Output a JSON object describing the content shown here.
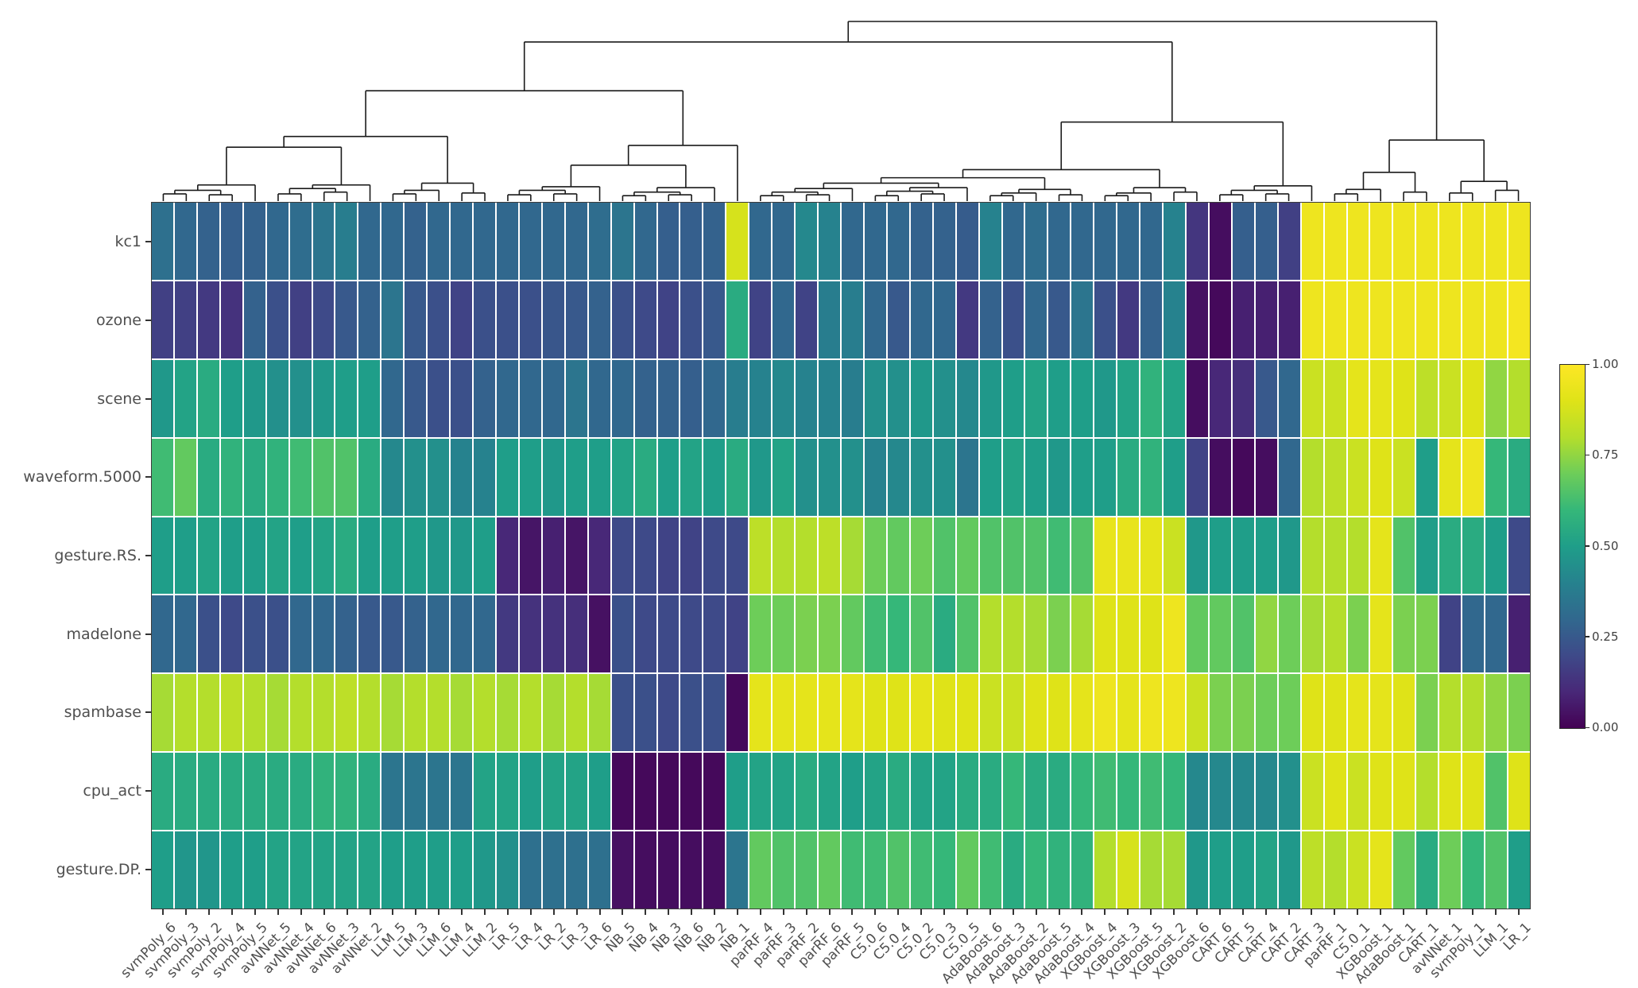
{
  "figure": {
    "kind": "cluster-heatmap",
    "background": "#ffffff"
  },
  "colors": {
    "label_text": "#4f4f4f",
    "axis": "#333333",
    "dendrogram_line": "#1a1a1a",
    "cell_gap": "#ffffff",
    "colorbar_border": "#2b2b2b"
  },
  "chart_data": {
    "type": "heatmap",
    "title": "",
    "xlabel": "",
    "ylabel": "",
    "grid": false,
    "legend_position": "right",
    "value_range": [
      0,
      1
    ],
    "colormap": "viridis",
    "colormap_stops": [
      [
        68,
        1,
        84
      ],
      [
        72,
        40,
        120
      ],
      [
        62,
        74,
        137
      ],
      [
        49,
        104,
        142
      ],
      [
        38,
        130,
        142
      ],
      [
        31,
        158,
        137
      ],
      [
        53,
        183,
        121
      ],
      [
        109,
        205,
        89
      ],
      [
        180,
        222,
        44
      ],
      [
        223,
        227,
        24
      ],
      [
        253,
        231,
        37
      ]
    ],
    "rows": [
      "kc1",
      "ozone",
      "scene",
      "waveform.5000",
      "gesture.RS.",
      "madelone",
      "spambase",
      "cpu_act",
      "gesture.DP."
    ],
    "columns": [
      "svmPoly_6",
      "svmPoly_3",
      "svmPoly_2",
      "svmPoly_4",
      "svmPoly_5",
      "avNNet_5",
      "avNNet_4",
      "avNNet_6",
      "avNNet_3",
      "avNNet_2",
      "LLM_5",
      "LLM_3",
      "LLM_6",
      "LLM_4",
      "LLM_2",
      "LR_5",
      "LR_4",
      "LR_2",
      "LR_3",
      "LR_6",
      "NB_5",
      "NB_4",
      "NB_3",
      "NB_6",
      "NB_2",
      "NB_1",
      "parRF_4",
      "parRF_3",
      "parRF_2",
      "parRF_6",
      "parRF_5",
      "C5.0_6",
      "C5.0_4",
      "C5.0_2",
      "C5.0_3",
      "C5.0_5",
      "AdaBoost_6",
      "AdaBoost_3",
      "AdaBoost_2",
      "AdaBoost_5",
      "AdaBoost_4",
      "XGBoost_4",
      "XGBoost_3",
      "XGBoost_5",
      "XGBoost_2",
      "XGBoost_6",
      "CART_6",
      "CART_5",
      "CART_4",
      "CART_2",
      "CART_3",
      "parRF_1",
      "C5.0_1",
      "XGBoost_1",
      "AdaBoost_1",
      "CART_1",
      "avNNet_1",
      "svmPoly_1",
      "LLM_1",
      "LR_1"
    ],
    "matrix": [
      [
        0.33,
        0.3,
        0.28,
        0.27,
        0.28,
        0.3,
        0.32,
        0.35,
        0.38,
        0.3,
        0.3,
        0.28,
        0.3,
        0.3,
        0.3,
        0.3,
        0.3,
        0.3,
        0.3,
        0.32,
        0.35,
        0.3,
        0.27,
        0.27,
        0.28,
        0.88,
        0.3,
        0.3,
        0.42,
        0.4,
        0.3,
        0.3,
        0.3,
        0.28,
        0.28,
        0.26,
        0.4,
        0.3,
        0.32,
        0.3,
        0.3,
        0.3,
        0.3,
        0.3,
        0.4,
        0.14,
        0.03,
        0.27,
        0.27,
        0.17,
        0.95,
        0.95,
        0.95,
        0.95,
        0.95,
        0.95,
        0.95,
        0.95,
        0.95,
        0.95
      ],
      [
        0.17,
        0.17,
        0.15,
        0.13,
        0.28,
        0.22,
        0.17,
        0.2,
        0.25,
        0.28,
        0.35,
        0.25,
        0.22,
        0.18,
        0.22,
        0.22,
        0.22,
        0.24,
        0.25,
        0.28,
        0.22,
        0.2,
        0.18,
        0.22,
        0.25,
        0.55,
        0.18,
        0.3,
        0.18,
        0.38,
        0.38,
        0.3,
        0.25,
        0.3,
        0.3,
        0.15,
        0.28,
        0.22,
        0.3,
        0.25,
        0.35,
        0.22,
        0.15,
        0.28,
        0.4,
        0.04,
        0.02,
        0.08,
        0.08,
        0.08,
        0.95,
        0.95,
        0.95,
        0.95,
        0.95,
        0.95,
        0.95,
        0.95,
        0.95,
        0.97
      ],
      [
        0.48,
        0.52,
        0.55,
        0.5,
        0.48,
        0.45,
        0.45,
        0.48,
        0.5,
        0.5,
        0.3,
        0.25,
        0.22,
        0.22,
        0.28,
        0.3,
        0.3,
        0.3,
        0.35,
        0.3,
        0.3,
        0.28,
        0.28,
        0.27,
        0.3,
        0.38,
        0.4,
        0.42,
        0.4,
        0.4,
        0.38,
        0.45,
        0.45,
        0.48,
        0.45,
        0.42,
        0.48,
        0.5,
        0.52,
        0.5,
        0.5,
        0.48,
        0.52,
        0.58,
        0.52,
        0.03,
        0.1,
        0.12,
        0.25,
        0.3,
        0.85,
        0.85,
        0.92,
        0.92,
        0.9,
        0.82,
        0.85,
        0.9,
        0.75,
        0.8
      ],
      [
        0.62,
        0.68,
        0.55,
        0.58,
        0.55,
        0.58,
        0.62,
        0.65,
        0.65,
        0.55,
        0.42,
        0.45,
        0.45,
        0.4,
        0.4,
        0.5,
        0.5,
        0.48,
        0.5,
        0.5,
        0.52,
        0.55,
        0.5,
        0.52,
        0.5,
        0.55,
        0.48,
        0.52,
        0.45,
        0.45,
        0.45,
        0.4,
        0.42,
        0.45,
        0.45,
        0.35,
        0.5,
        0.52,
        0.5,
        0.48,
        0.5,
        0.5,
        0.55,
        0.58,
        0.5,
        0.18,
        0.03,
        0.02,
        0.03,
        0.3,
        0.8,
        0.82,
        0.85,
        0.9,
        0.85,
        0.5,
        0.92,
        0.95,
        0.6,
        0.55
      ],
      [
        0.5,
        0.5,
        0.52,
        0.5,
        0.5,
        0.52,
        0.5,
        0.52,
        0.55,
        0.5,
        0.5,
        0.5,
        0.48,
        0.48,
        0.5,
        0.1,
        0.05,
        0.08,
        0.05,
        0.1,
        0.2,
        0.2,
        0.18,
        0.18,
        0.2,
        0.2,
        0.82,
        0.8,
        0.8,
        0.82,
        0.78,
        0.7,
        0.68,
        0.7,
        0.65,
        0.68,
        0.65,
        0.65,
        0.65,
        0.62,
        0.65,
        0.93,
        0.93,
        0.92,
        0.85,
        0.48,
        0.5,
        0.5,
        0.5,
        0.48,
        0.8,
        0.8,
        0.8,
        0.92,
        0.65,
        0.5,
        0.55,
        0.55,
        0.5,
        0.2
      ],
      [
        0.3,
        0.3,
        0.22,
        0.2,
        0.22,
        0.22,
        0.3,
        0.3,
        0.28,
        0.25,
        0.25,
        0.28,
        0.3,
        0.3,
        0.3,
        0.15,
        0.13,
        0.13,
        0.12,
        0.04,
        0.22,
        0.2,
        0.2,
        0.2,
        0.2,
        0.18,
        0.7,
        0.7,
        0.72,
        0.72,
        0.68,
        0.62,
        0.6,
        0.65,
        0.55,
        0.65,
        0.8,
        0.8,
        0.78,
        0.72,
        0.78,
        0.9,
        0.9,
        0.9,
        0.95,
        0.68,
        0.68,
        0.65,
        0.75,
        0.7,
        0.78,
        0.8,
        0.72,
        0.92,
        0.72,
        0.72,
        0.18,
        0.3,
        0.3,
        0.08
      ],
      [
        0.78,
        0.8,
        0.8,
        0.82,
        0.8,
        0.78,
        0.8,
        0.8,
        0.82,
        0.8,
        0.78,
        0.8,
        0.8,
        0.78,
        0.8,
        0.78,
        0.8,
        0.78,
        0.8,
        0.78,
        0.22,
        0.22,
        0.2,
        0.22,
        0.22,
        0.02,
        0.92,
        0.92,
        0.92,
        0.92,
        0.92,
        0.9,
        0.9,
        0.92,
        0.9,
        0.9,
        0.85,
        0.85,
        0.9,
        0.9,
        0.92,
        0.95,
        0.92,
        0.95,
        0.95,
        0.85,
        0.72,
        0.72,
        0.7,
        0.7,
        0.9,
        0.9,
        0.92,
        0.92,
        0.9,
        0.72,
        0.8,
        0.8,
        0.75,
        0.72
      ],
      [
        0.55,
        0.55,
        0.55,
        0.55,
        0.55,
        0.55,
        0.55,
        0.58,
        0.58,
        0.55,
        0.35,
        0.35,
        0.35,
        0.35,
        0.52,
        0.52,
        0.5,
        0.52,
        0.52,
        0.5,
        0.02,
        0.02,
        0.02,
        0.02,
        0.02,
        0.5,
        0.52,
        0.52,
        0.55,
        0.52,
        0.5,
        0.52,
        0.55,
        0.52,
        0.52,
        0.55,
        0.55,
        0.6,
        0.55,
        0.55,
        0.6,
        0.62,
        0.6,
        0.62,
        0.6,
        0.42,
        0.42,
        0.42,
        0.42,
        0.45,
        0.85,
        0.9,
        0.85,
        0.9,
        0.9,
        0.8,
        0.9,
        0.9,
        0.65,
        0.9
      ],
      [
        0.5,
        0.47,
        0.47,
        0.5,
        0.5,
        0.52,
        0.52,
        0.52,
        0.52,
        0.52,
        0.5,
        0.5,
        0.5,
        0.5,
        0.48,
        0.45,
        0.33,
        0.33,
        0.33,
        0.33,
        0.04,
        0.03,
        0.03,
        0.03,
        0.03,
        0.35,
        0.68,
        0.65,
        0.65,
        0.68,
        0.62,
        0.62,
        0.65,
        0.62,
        0.6,
        0.68,
        0.62,
        0.55,
        0.6,
        0.58,
        0.58,
        0.8,
        0.88,
        0.78,
        0.78,
        0.48,
        0.5,
        0.5,
        0.52,
        0.48,
        0.82,
        0.8,
        0.85,
        0.92,
        0.68,
        0.55,
        0.7,
        0.6,
        0.65,
        0.5
      ]
    ],
    "colorbar": {
      "tick_labels": [
        "1.00",
        "0.75",
        "0.50",
        "0.25",
        "0.00"
      ],
      "tick_values": [
        1.0,
        0.75,
        0.5,
        0.25,
        0.0
      ]
    },
    "column_dendrogram": [
      1.0,
      [
        0.886,
        [
          0.614,
          [
            0.36,
            [
              0.3,
              [
                0.09,
                [
                  0.06,
                  [
                    0.04,
                    0,
                    1
                  ],
                  [
                    0.035,
                    2,
                    3
                  ]
                ],
                4
              ],
              [
                0.09,
                [
                  0.07,
                  [
                    0.04,
                    5,
                    6
                  ],
                  [
                    0.05,
                    7,
                    8
                  ]
                ],
                9
              ]
            ],
            [
              0.1,
              [
                0.06,
                [
                  0.04,
                  10,
                  11
                ],
                12
              ],
              [
                0.045,
                13,
                14
              ]
            ]
          ],
          [
            0.31,
            [
              0.2,
              [
                0.08,
                [
                  0.06,
                  [
                    0.035,
                    15,
                    16
                  ],
                  [
                    0.04,
                    17,
                    18
                  ]
                ],
                19
              ],
              [
                0.075,
                [
                  0.05,
                  [
                    0.03,
                    20,
                    21
                  ],
                  [
                    0.035,
                    22,
                    23
                  ]
                ],
                24
              ]
            ],
            25
          ]
        ],
        [
          0.44,
          [
            0.175,
            [
              0.13,
              [
                0.1,
                [
                  0.07,
                  [
                    0.05,
                    [
                      0.03,
                      26,
                      27
                    ],
                    [
                      0.035,
                      28,
                      29
                    ]
                  ],
                  30
                ],
                [
                  0.075,
                  [
                    0.055,
                    [
                      0.03,
                      31,
                      32
                    ],
                    [
                      0.04,
                      33,
                      34
                    ]
                  ],
                  35
                ]
              ],
              [
                0.065,
                [
                  0.045,
                  [
                    0.03,
                    36,
                    37
                  ],
                  38
                ],
                [
                  0.035,
                  39,
                  40
                ]
              ]
            ],
            [
              0.075,
              [
                0.045,
                [
                  0.03,
                  41,
                  42
                ],
                43
              ],
              [
                0.05,
                44,
                45
              ]
            ]
          ],
          [
            0.085,
            [
              0.06,
              [
                0.035,
                46,
                47
              ],
              [
                0.04,
                48,
                49
              ]
            ],
            50
          ]
        ]
      ],
      [
        0.34,
        [
          0.16,
          [
            0.065,
            [
              0.04,
              51,
              52
            ],
            53
          ],
          [
            0.05,
            54,
            55
          ]
        ],
        [
          0.11,
          [
            0.045,
            56,
            57
          ],
          [
            0.06,
            58,
            59
          ]
        ]
      ]
    ]
  }
}
